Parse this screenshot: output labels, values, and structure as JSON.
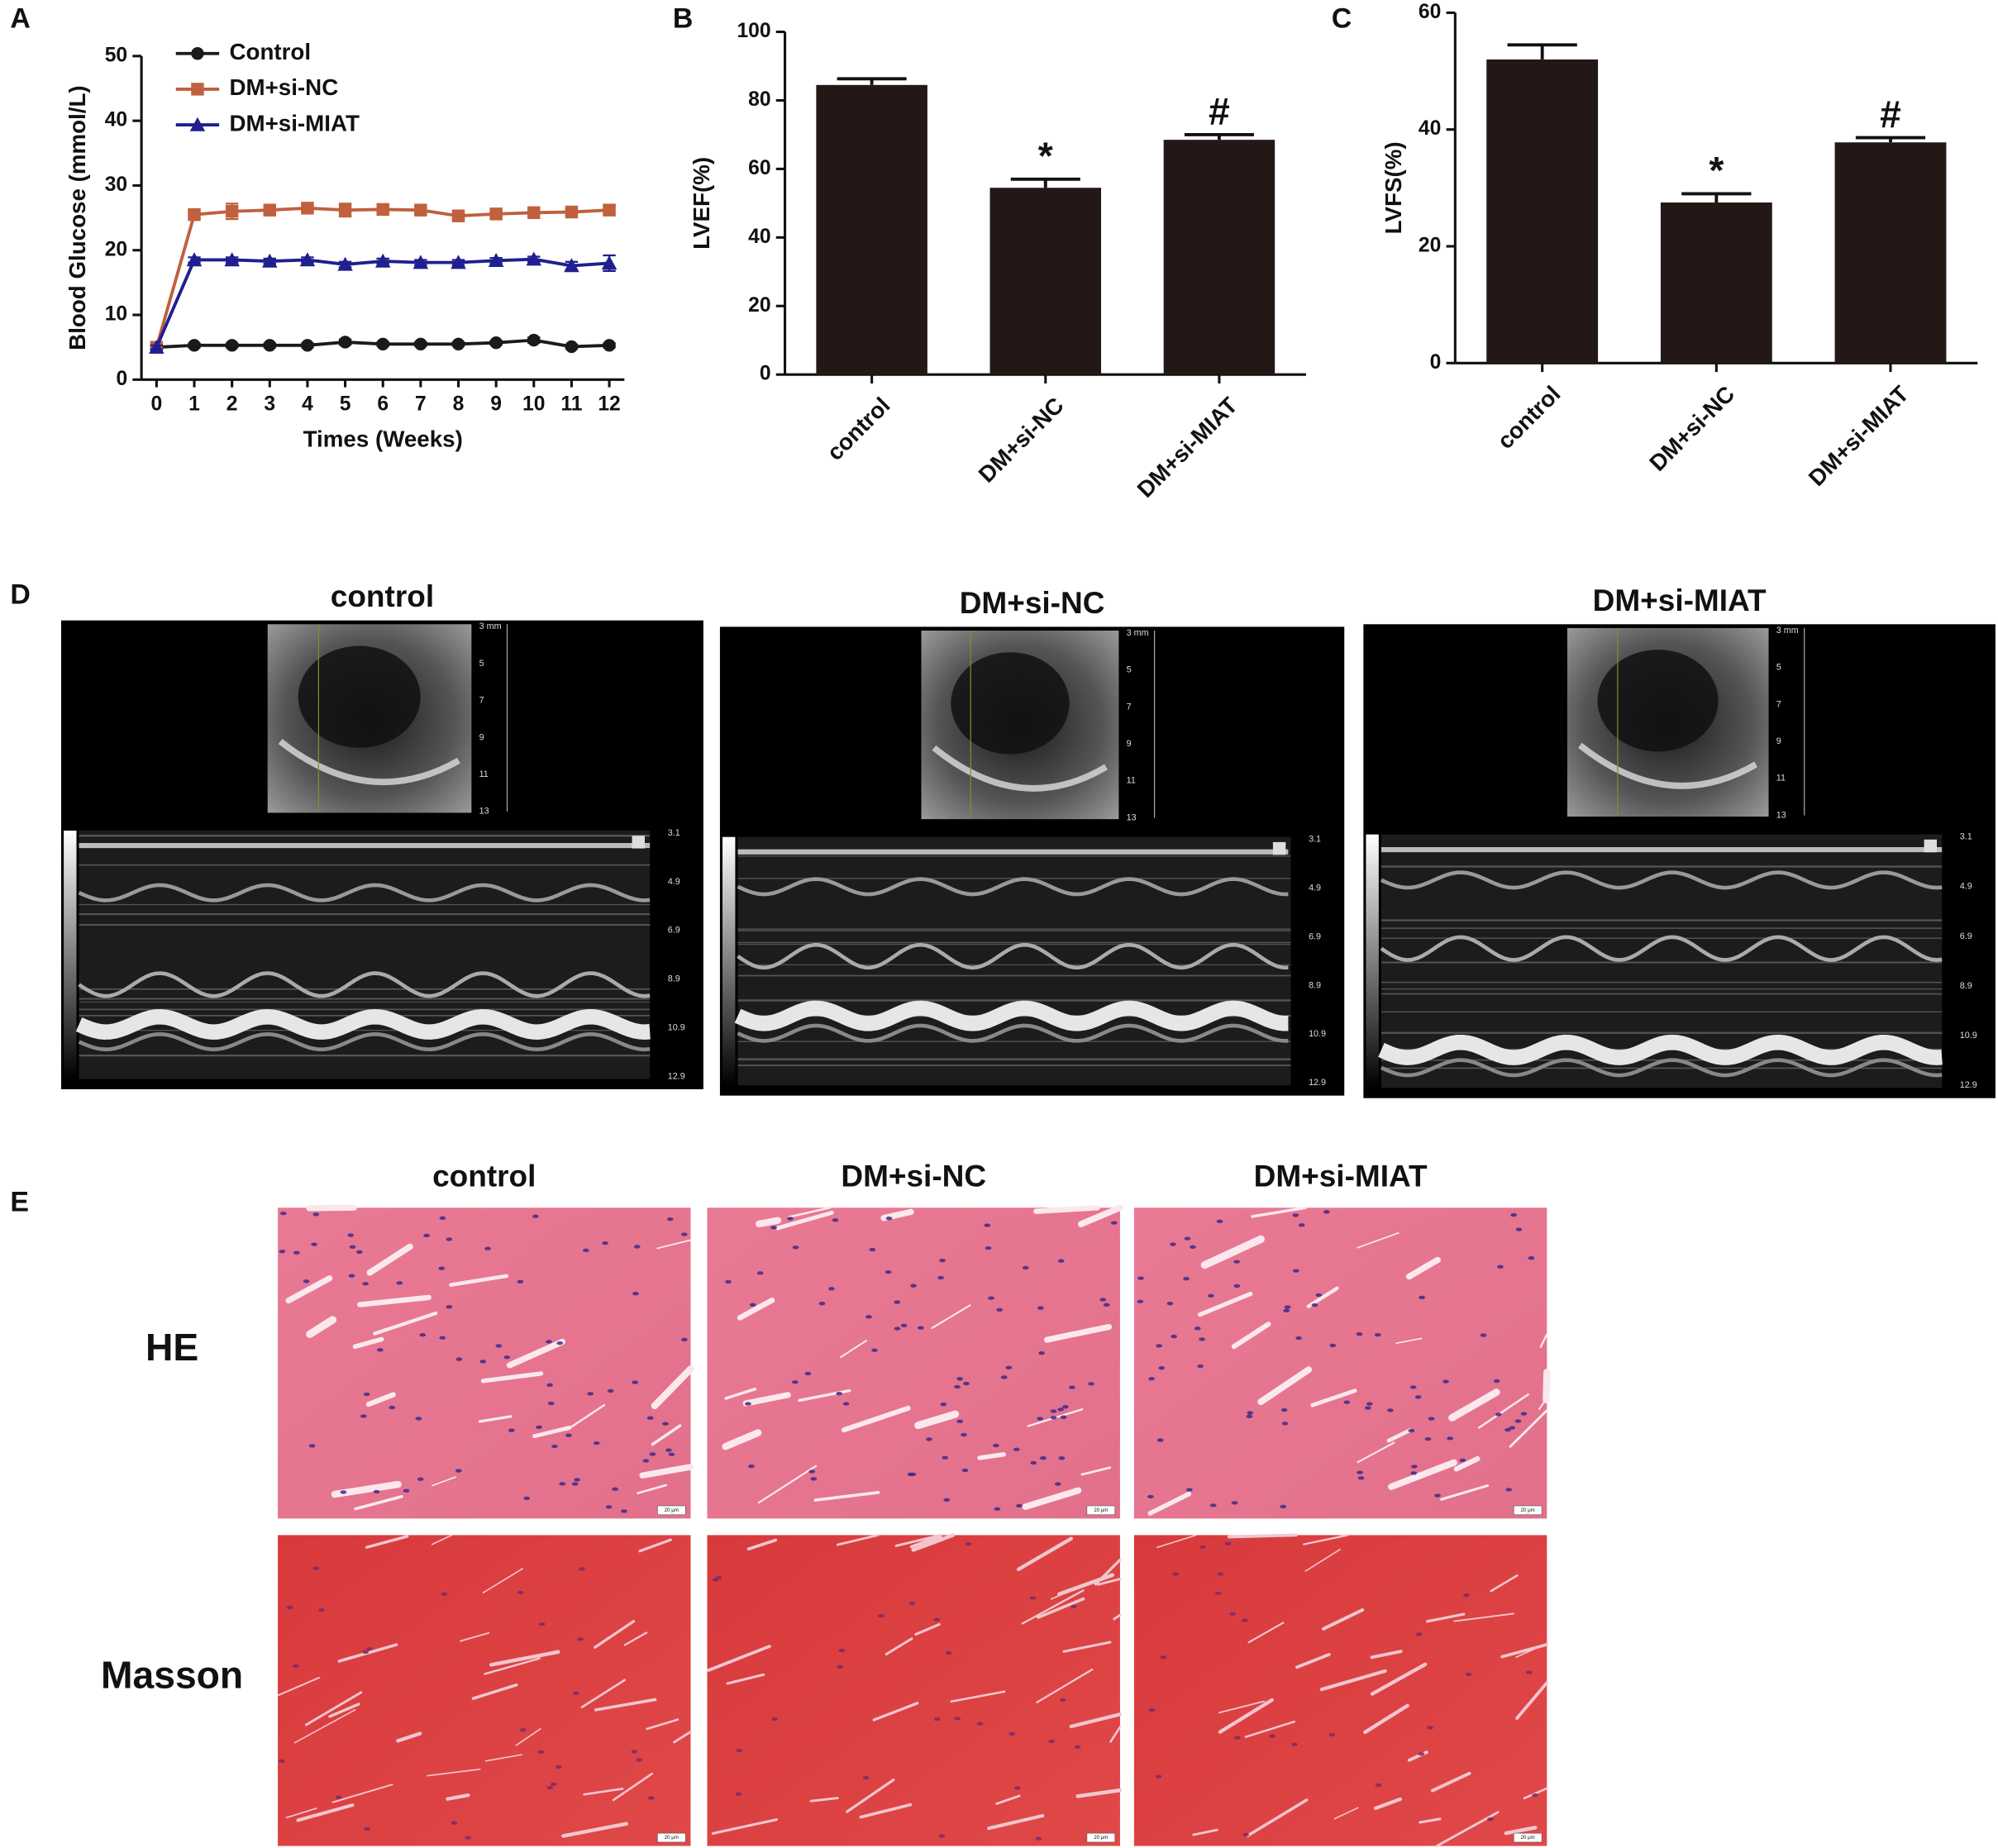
{
  "chart_data": [
    {
      "panel": "A",
      "type": "line",
      "xlabel": "Times (Weeks)",
      "ylabel": "Blood Glucose (mmol/L)",
      "x": [
        0,
        1,
        2,
        3,
        4,
        5,
        6,
        7,
        8,
        9,
        10,
        11,
        12
      ],
      "xlim": [
        -0.4,
        12.4
      ],
      "xticks": [
        0,
        1,
        2,
        3,
        4,
        5,
        6,
        7,
        8,
        9,
        10,
        11,
        12
      ],
      "ylim": [
        0,
        50
      ],
      "yticks": [
        0,
        10,
        20,
        30,
        40,
        50
      ],
      "legend": "upper left",
      "series": [
        {
          "name": "Control",
          "color": "#1a1a1a",
          "marker": "circle",
          "values": [
            5,
            5.3,
            5.3,
            5.3,
            5.3,
            5.8,
            5.5,
            5.5,
            5.5,
            5.7,
            6.1,
            5.1,
            5.3
          ],
          "errors": [
            0.3,
            0.3,
            0.3,
            0.3,
            0.3,
            0.4,
            0.3,
            0.3,
            0.3,
            0.3,
            0.4,
            0.3,
            0.3
          ]
        },
        {
          "name": "DM+si-NC",
          "color": "#c0603e",
          "marker": "square",
          "values": [
            5,
            25.5,
            26,
            26.2,
            26.5,
            26.2,
            26.3,
            26.2,
            25.3,
            25.6,
            25.8,
            25.9,
            26.2
          ],
          "errors": [
            0.3,
            0.6,
            1.2,
            0.6,
            0.5,
            1,
            0.5,
            0.5,
            0.4,
            0.4,
            0.4,
            0.4,
            0.6
          ]
        },
        {
          "name": "DM+si-MIAT",
          "color": "#1f1f8f",
          "marker": "triangle",
          "values": [
            5,
            18.5,
            18.5,
            18.3,
            18.5,
            17.8,
            18.3,
            18.1,
            18.1,
            18.4,
            18.6,
            17.6,
            18
          ],
          "errors": [
            0.3,
            0.4,
            0.4,
            0.4,
            0.4,
            0.4,
            0.4,
            0.4,
            0.4,
            0.4,
            0.4,
            0.6,
            1.2
          ]
        }
      ]
    },
    {
      "panel": "B",
      "type": "bar",
      "ylabel": "LVEF(%)",
      "categories": [
        "control",
        "DM+si-NC",
        "DM+si-MIAT"
      ],
      "values": [
        84.5,
        54.5,
        68.5
      ],
      "errors": [
        1.8,
        2.5,
        1.5
      ],
      "significance": [
        null,
        "*",
        "#"
      ],
      "color": "#231815",
      "ylim": [
        0,
        100
      ],
      "yticks": [
        0,
        20,
        40,
        60,
        80,
        100
      ]
    },
    {
      "panel": "C",
      "type": "bar",
      "ylabel": "LVFS(%)",
      "categories": [
        "control",
        "DM+si-NC",
        "DM+si-MIAT"
      ],
      "values": [
        52,
        27.5,
        37.8
      ],
      "errors": [
        2.5,
        1.5,
        0.8
      ],
      "significance": [
        null,
        "*",
        "#"
      ],
      "color": "#231815",
      "ylim": [
        0,
        60
      ],
      "yticks": [
        0,
        20,
        40,
        60
      ]
    }
  ],
  "echo": {
    "panel": "D",
    "titles": [
      "control",
      "DM+si-NC",
      "DM+si-MIAT"
    ],
    "bmode_depth_labels": [
      "3 mm",
      "5",
      "7",
      "9",
      "11",
      "13"
    ],
    "mmode_depth_labels": [
      "3.1",
      "4.9",
      "6.9",
      "8.9",
      "10.9",
      "12.9"
    ]
  },
  "histology": {
    "panel": "E",
    "columns": [
      "control",
      "DM+si-NC",
      "DM+si-MIAT"
    ],
    "rows": [
      "HE",
      "Masson"
    ],
    "scale_bar": "20 μm"
  }
}
